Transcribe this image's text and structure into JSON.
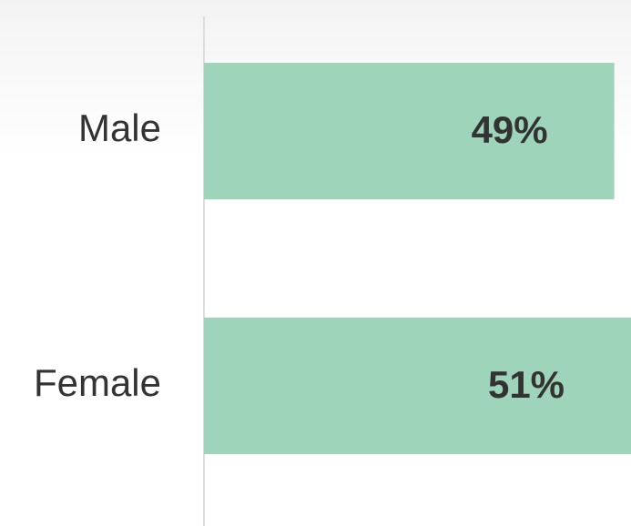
{
  "chart_data": {
    "type": "hbar",
    "categories": [
      "Male",
      "Female"
    ],
    "values": [
      49,
      51
    ],
    "value_labels": [
      "49%",
      "51%"
    ],
    "color": "#9ed4b9",
    "xlim": [
      0,
      51
    ]
  }
}
